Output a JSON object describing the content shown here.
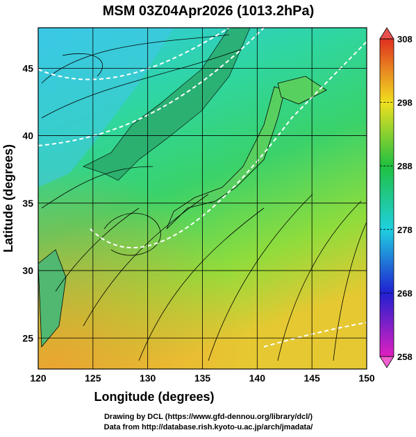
{
  "title": "MSM 03Z04Apr2026 (1013.2hPa)",
  "x_axis": {
    "label": "Longitude (degrees)",
    "lim": [
      120,
      150
    ],
    "ticks": [
      120,
      125,
      130,
      135,
      140,
      145,
      150
    ]
  },
  "y_axis": {
    "label": "Latitude  (degrees)",
    "lim": [
      22.7,
      48
    ],
    "ticks": [
      25,
      30,
      35,
      40,
      45
    ]
  },
  "colorbar": {
    "lim": [
      258,
      308
    ],
    "ticks": [
      258,
      268,
      278,
      288,
      298,
      308
    ]
  },
  "credits": [
    "Drawing by DCL (https://www.gfd-dennou.org/library/dcl/)",
    "Data from http://database.rish.kyoto-u.ac.jp/arch/jmadata/"
  ]
}
